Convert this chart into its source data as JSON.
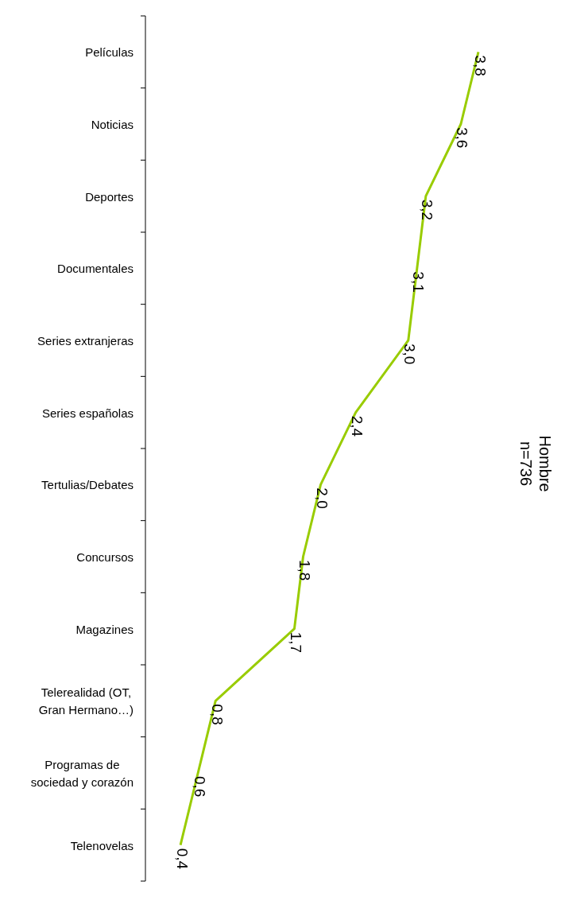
{
  "chart_data": {
    "type": "line",
    "orientation": "horizontal",
    "title": "Hombre",
    "subtitle": "n=736",
    "categories": [
      "Películas",
      "Noticias",
      "Deportes",
      "Documentales",
      "Series extranjeras",
      "Series españolas",
      "Tertulias/Debates",
      "Concursos",
      "Magazines",
      "Telerealidad (OT, Gran Hermano…)",
      "Programas de sociedad y corazón",
      "Telenovelas"
    ],
    "series": [
      {
        "color": "#99cc00",
        "values": [
          3.8,
          3.6,
          3.2,
          3.1,
          3.0,
          2.4,
          2.0,
          1.8,
          1.7,
          0.8,
          0.6,
          0.4
        ],
        "value_labels": [
          "3,8",
          "3,6",
          "3,2",
          "3,1",
          "3,0",
          "2,4",
          "2,0",
          "1,8",
          "1,7",
          "0,8",
          "0,6",
          "0,4"
        ]
      }
    ],
    "tick_labels": "y",
    "marker": "none",
    "line_style": "solid"
  }
}
